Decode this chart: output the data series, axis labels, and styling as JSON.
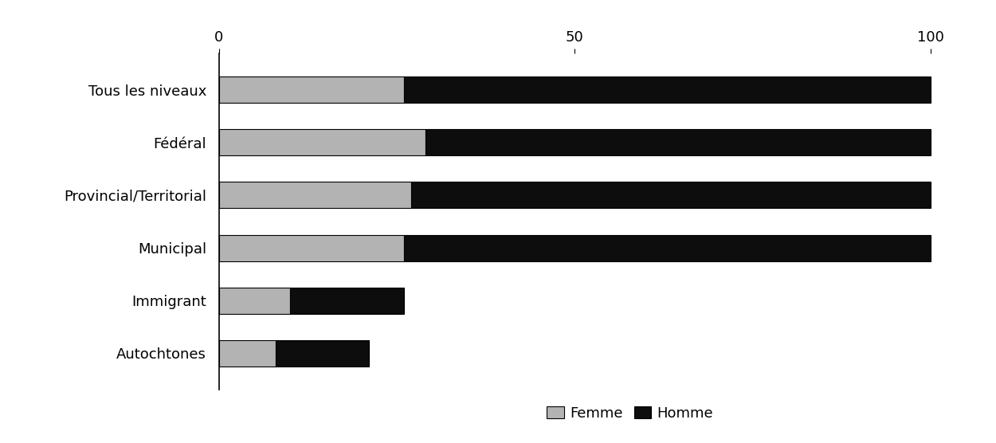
{
  "categories": [
    "Tous les niveaux",
    "Fédéral",
    "Provincial/Territorial",
    "Municipal",
    "Immigrant",
    "Autochtones"
  ],
  "femme": [
    26,
    29,
    27,
    26,
    10,
    8
  ],
  "homme": [
    74,
    71,
    73,
    74,
    16,
    13
  ],
  "femme_color": "#b3b3b3",
  "homme_color": "#0d0d0d",
  "xlim": [
    0,
    105
  ],
  "xticks": [
    0,
    50,
    100
  ],
  "bar_height": 0.5,
  "legend_labels": [
    "Femme",
    "Homme"
  ],
  "background_color": "#ffffff",
  "border_color": "#000000",
  "fontsize_labels": 13,
  "fontsize_ticks": 13,
  "fontsize_legend": 13
}
